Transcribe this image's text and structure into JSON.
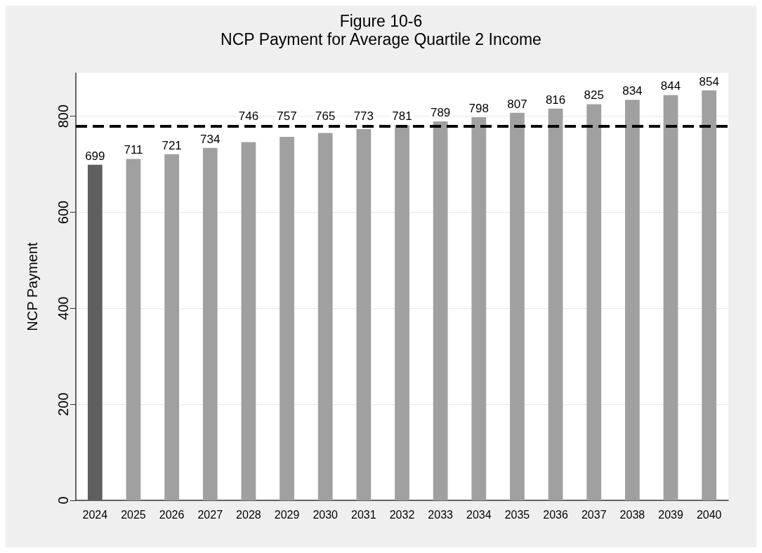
{
  "chart_data": {
    "type": "bar",
    "title": "Figure 10-6\nNCP Payment for Average Quartile 2 Income",
    "ylabel": "NCP Payment",
    "categories": [
      "2024",
      "2025",
      "2026",
      "2027",
      "2028",
      "2029",
      "2030",
      "2031",
      "2032",
      "2033",
      "2034",
      "2035",
      "2036",
      "2037",
      "2038",
      "2039",
      "2040"
    ],
    "values": [
      699,
      711,
      721,
      734,
      746,
      757,
      765,
      773,
      781,
      789,
      798,
      807,
      816,
      825,
      834,
      844,
      854
    ],
    "colors": [
      "#5f5f5f",
      "#a0a0a0",
      "#a0a0a0",
      "#a0a0a0",
      "#a0a0a0",
      "#a0a0a0",
      "#a0a0a0",
      "#a0a0a0",
      "#a0a0a0",
      "#a0a0a0",
      "#a0a0a0",
      "#a0a0a0",
      "#a0a0a0",
      "#a0a0a0",
      "#a0a0a0",
      "#a0a0a0",
      "#a0a0a0"
    ],
    "ylim": [
      0,
      890
    ],
    "yticks": [
      0,
      200,
      400,
      600,
      800
    ],
    "grid": "y",
    "data_labels": true,
    "ref_lines": [
      {
        "axis": "y",
        "value": 779,
        "color": "#000000",
        "line_style": "dashed"
      }
    ]
  }
}
